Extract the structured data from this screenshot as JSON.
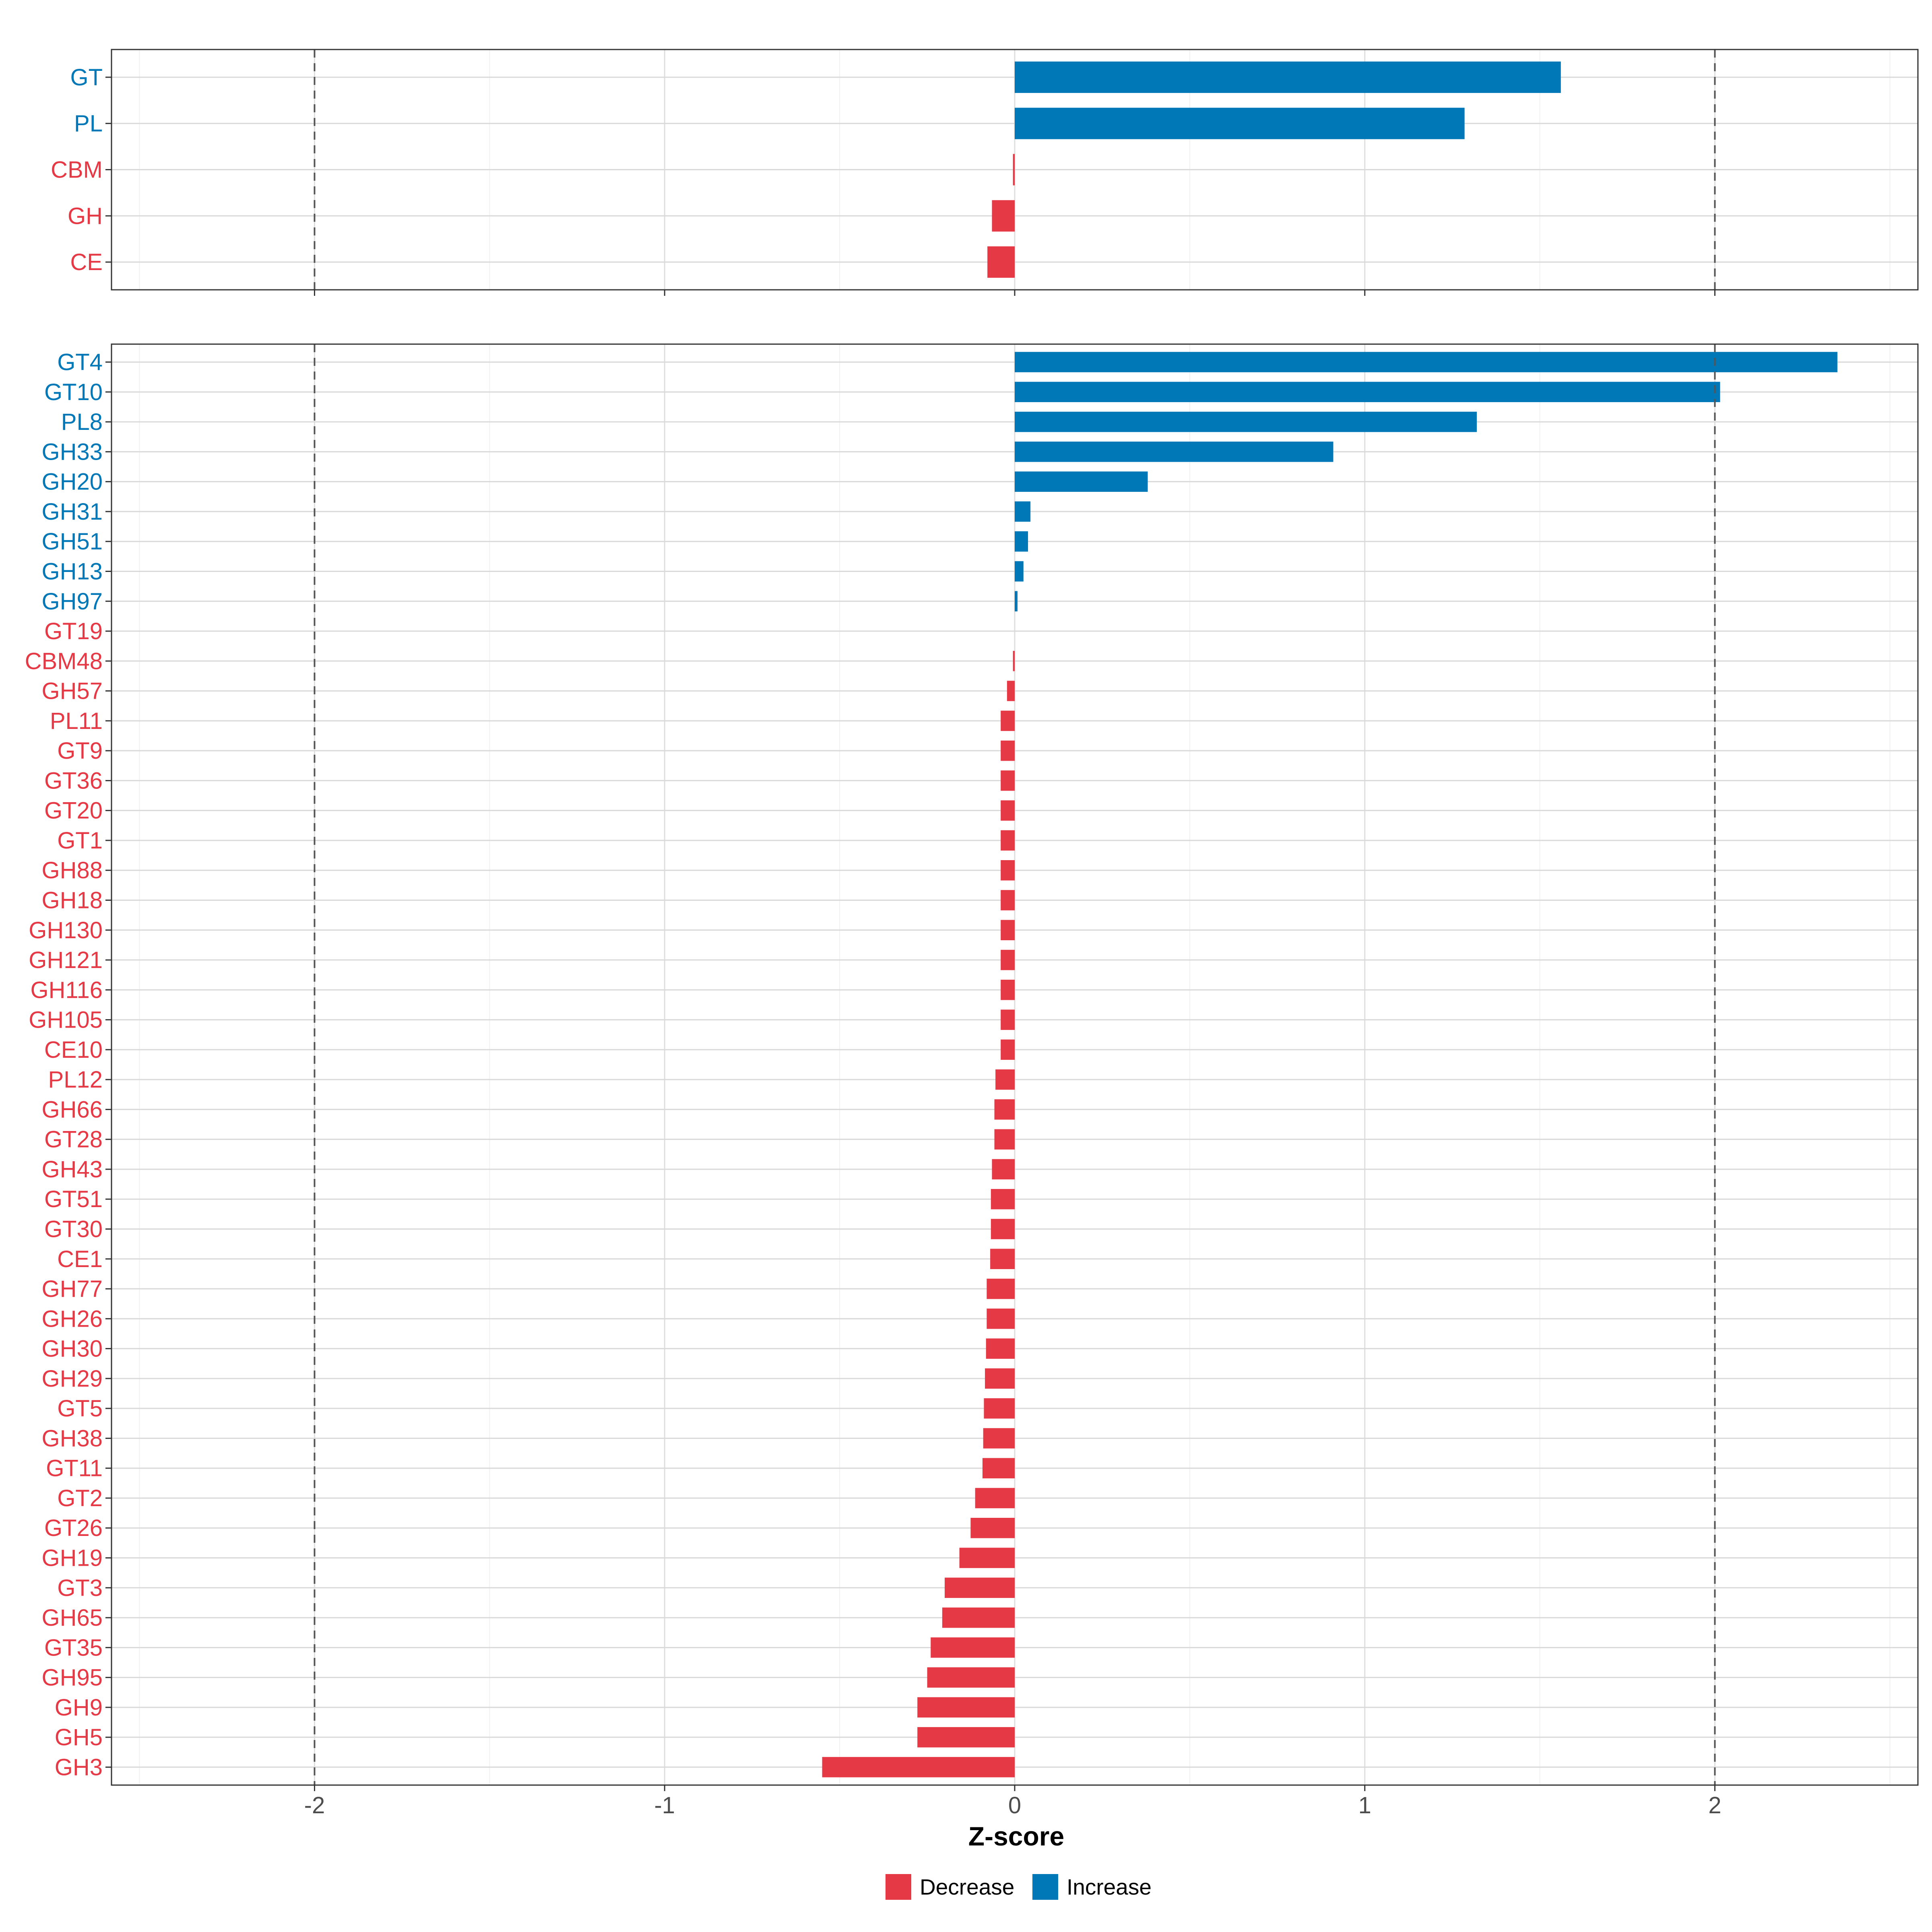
{
  "colors": {
    "increase": "#0077B6",
    "decrease": "#E63946",
    "grid": "#d9d9d9",
    "refline": "#555555"
  },
  "chart_data": [
    {
      "type": "bar",
      "orientation": "horizontal",
      "panel": "class-level",
      "categories": [
        "GT",
        "PL",
        "CBM",
        "GH",
        "CE"
      ],
      "values": [
        1.56,
        1.285,
        -0.005,
        -0.065,
        -0.078
      ],
      "xlim": [
        -2.58,
        2.58
      ],
      "reference_lines": [
        -2,
        2
      ],
      "grid": true
    },
    {
      "type": "bar",
      "orientation": "horizontal",
      "panel": "family-level",
      "categories": [
        "GT4",
        "GT10",
        "PL8",
        "GH33",
        "GH20",
        "GH31",
        "GH51",
        "GH13",
        "GH97",
        "GT19",
        "CBM48",
        "GH57",
        "PL11",
        "GT9",
        "GT36",
        "GT20",
        "GT1",
        "GH88",
        "GH18",
        "GH130",
        "GH121",
        "GH116",
        "GH105",
        "CE10",
        "PL12",
        "GH66",
        "GT28",
        "GH43",
        "GT51",
        "GT30",
        "CE1",
        "GH77",
        "GH26",
        "GH30",
        "GH29",
        "GT5",
        "GH38",
        "GT11",
        "GT2",
        "GT26",
        "GH19",
        "GT3",
        "GH65",
        "GT35",
        "GH95",
        "GH9",
        "GH5",
        "GH3"
      ],
      "values": [
        2.35,
        2.015,
        1.32,
        0.91,
        0.38,
        0.045,
        0.038,
        0.025,
        0.008,
        0.0,
        -0.005,
        -0.022,
        -0.04,
        -0.04,
        -0.04,
        -0.04,
        -0.04,
        -0.04,
        -0.04,
        -0.04,
        -0.04,
        -0.04,
        -0.04,
        -0.04,
        -0.055,
        -0.058,
        -0.058,
        -0.065,
        -0.068,
        -0.068,
        -0.07,
        -0.08,
        -0.08,
        -0.082,
        -0.085,
        -0.088,
        -0.09,
        -0.092,
        -0.113,
        -0.126,
        -0.158,
        -0.2,
        -0.207,
        -0.24,
        -0.25,
        -0.278,
        -0.278,
        -0.55
      ],
      "xlim": [
        -2.58,
        2.58
      ],
      "reference_lines": [
        -2,
        2
      ],
      "grid": true,
      "xticks": [
        "-2",
        "-1",
        "0",
        "1",
        "2"
      ],
      "xticks_values": [
        -2,
        -1,
        0,
        1,
        2
      ],
      "xlabel": "Z-score",
      "legend": {
        "position": "bottom",
        "entries": [
          {
            "label": "Decrease",
            "color": "#E63946"
          },
          {
            "label": "Increase",
            "color": "#0077B6"
          }
        ]
      }
    }
  ]
}
